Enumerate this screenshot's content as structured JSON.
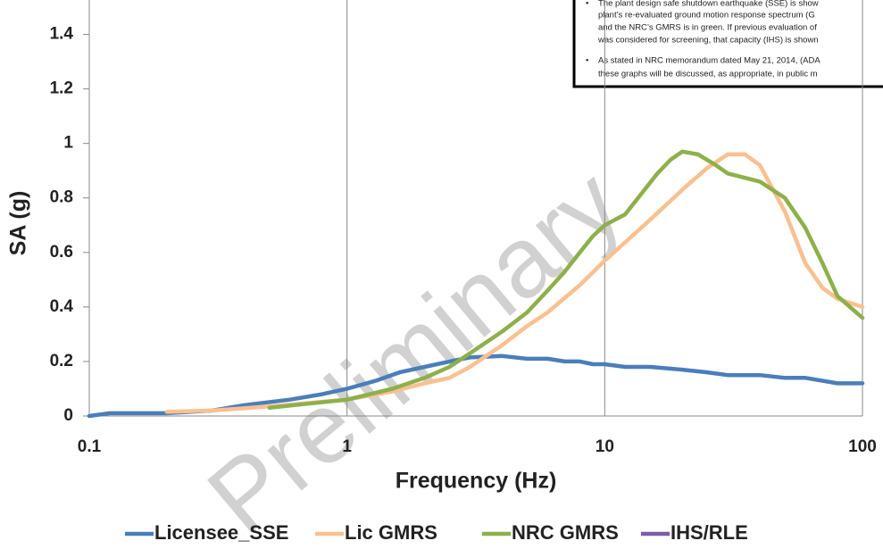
{
  "chart_data": {
    "type": "line",
    "xlabel": "Frequency (Hz)",
    "ylabel": "SA (g)",
    "xscale": "log",
    "xlim": [
      0.1,
      100
    ],
    "xticks": [
      0.1,
      1,
      10,
      100
    ],
    "ylim": [
      0,
      1.5
    ],
    "yticks": [
      0,
      0.2,
      0.4,
      0.6,
      0.8,
      1,
      1.2,
      1.4
    ],
    "grid": "x",
    "legend": "bottom",
    "watermark": "Preliminary",
    "notes": [
      [
        "The plant design safe shutdown earthquake (SSE) is show",
        "plant’s re-evaluated ground motion response spectrum (G",
        "and the NRC’s GMRS is in green. If previous evaluation of",
        "was considered for screening, that capacity (IHS) is shown"
      ],
      [
        "As stated in NRC memorandum dated May 21, 2014, (ADA",
        "these graphs will be discussed, as appropriate, in public m"
      ]
    ],
    "series": [
      {
        "name": "Licensee_SSE",
        "color": "#4a7ebb",
        "x": [
          0.1,
          0.12,
          0.2,
          0.3,
          0.4,
          0.6,
          0.8,
          1,
          1.3,
          1.6,
          2,
          2.5,
          3,
          4,
          5,
          6,
          7,
          8,
          9,
          10,
          12,
          15,
          20,
          25,
          30,
          40,
          50,
          60,
          80,
          100
        ],
        "values": [
          0,
          0.01,
          0.01,
          0.02,
          0.04,
          0.06,
          0.08,
          0.1,
          0.13,
          0.16,
          0.18,
          0.2,
          0.215,
          0.22,
          0.21,
          0.21,
          0.2,
          0.2,
          0.19,
          0.19,
          0.18,
          0.18,
          0.17,
          0.16,
          0.15,
          0.15,
          0.14,
          0.14,
          0.12,
          0.12
        ]
      },
      {
        "name": "Lic GMRS",
        "color": "#f9c090",
        "x": [
          0.2,
          0.3,
          0.5,
          1,
          1.5,
          2,
          2.5,
          3,
          4,
          5,
          6,
          8,
          10,
          15,
          20,
          25,
          30,
          35,
          40,
          50,
          60,
          70,
          80,
          100
        ],
        "values": [
          0.015,
          0.02,
          0.035,
          0.06,
          0.09,
          0.12,
          0.14,
          0.18,
          0.26,
          0.33,
          0.38,
          0.48,
          0.57,
          0.72,
          0.83,
          0.91,
          0.96,
          0.96,
          0.92,
          0.75,
          0.56,
          0.47,
          0.43,
          0.4
        ]
      },
      {
        "name": "NRC GMRS",
        "color": "#8db04a",
        "x": [
          0.5,
          0.7,
          1,
          1.5,
          2,
          2.5,
          3,
          4,
          5,
          6,
          7,
          8,
          9,
          10,
          12,
          14,
          16,
          18,
          20,
          23,
          27,
          30,
          40,
          50,
          60,
          70,
          80,
          100
        ],
        "values": [
          0.03,
          0.045,
          0.06,
          0.1,
          0.14,
          0.18,
          0.23,
          0.31,
          0.38,
          0.46,
          0.53,
          0.6,
          0.66,
          0.7,
          0.74,
          0.82,
          0.89,
          0.94,
          0.97,
          0.96,
          0.92,
          0.89,
          0.86,
          0.8,
          0.69,
          0.56,
          0.44,
          0.36
        ]
      },
      {
        "name": "IHS/RLE",
        "color": "#7d5ba6",
        "x": [],
        "values": []
      }
    ]
  }
}
